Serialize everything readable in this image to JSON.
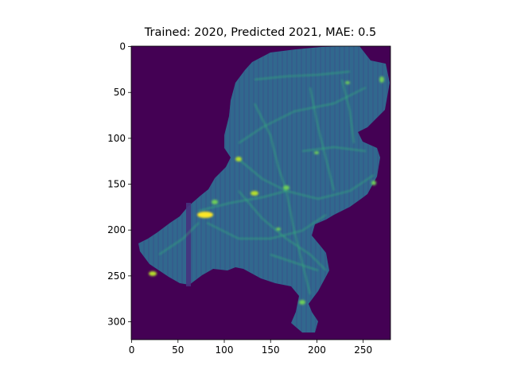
{
  "chart_data": {
    "type": "heatmap",
    "title": "Trained: 2020, Predicted 2021, MAE: 0.5",
    "xlabel": "",
    "ylabel": "",
    "xlim": [
      -0.5,
      279.5
    ],
    "ylim": [
      319.5,
      -0.5
    ],
    "x_ticks": [
      0,
      50,
      100,
      150,
      200,
      250
    ],
    "y_ticks": [
      0,
      50,
      100,
      150,
      200,
      250,
      300
    ],
    "y_axis_inverted": true,
    "colormap": "viridis",
    "background_value_color": "#440154",
    "grid": false,
    "colorbar": false,
    "description_of_values": "raster image of predicted values over the Netherlands; values are per-pixel and not individually labeled"
  }
}
